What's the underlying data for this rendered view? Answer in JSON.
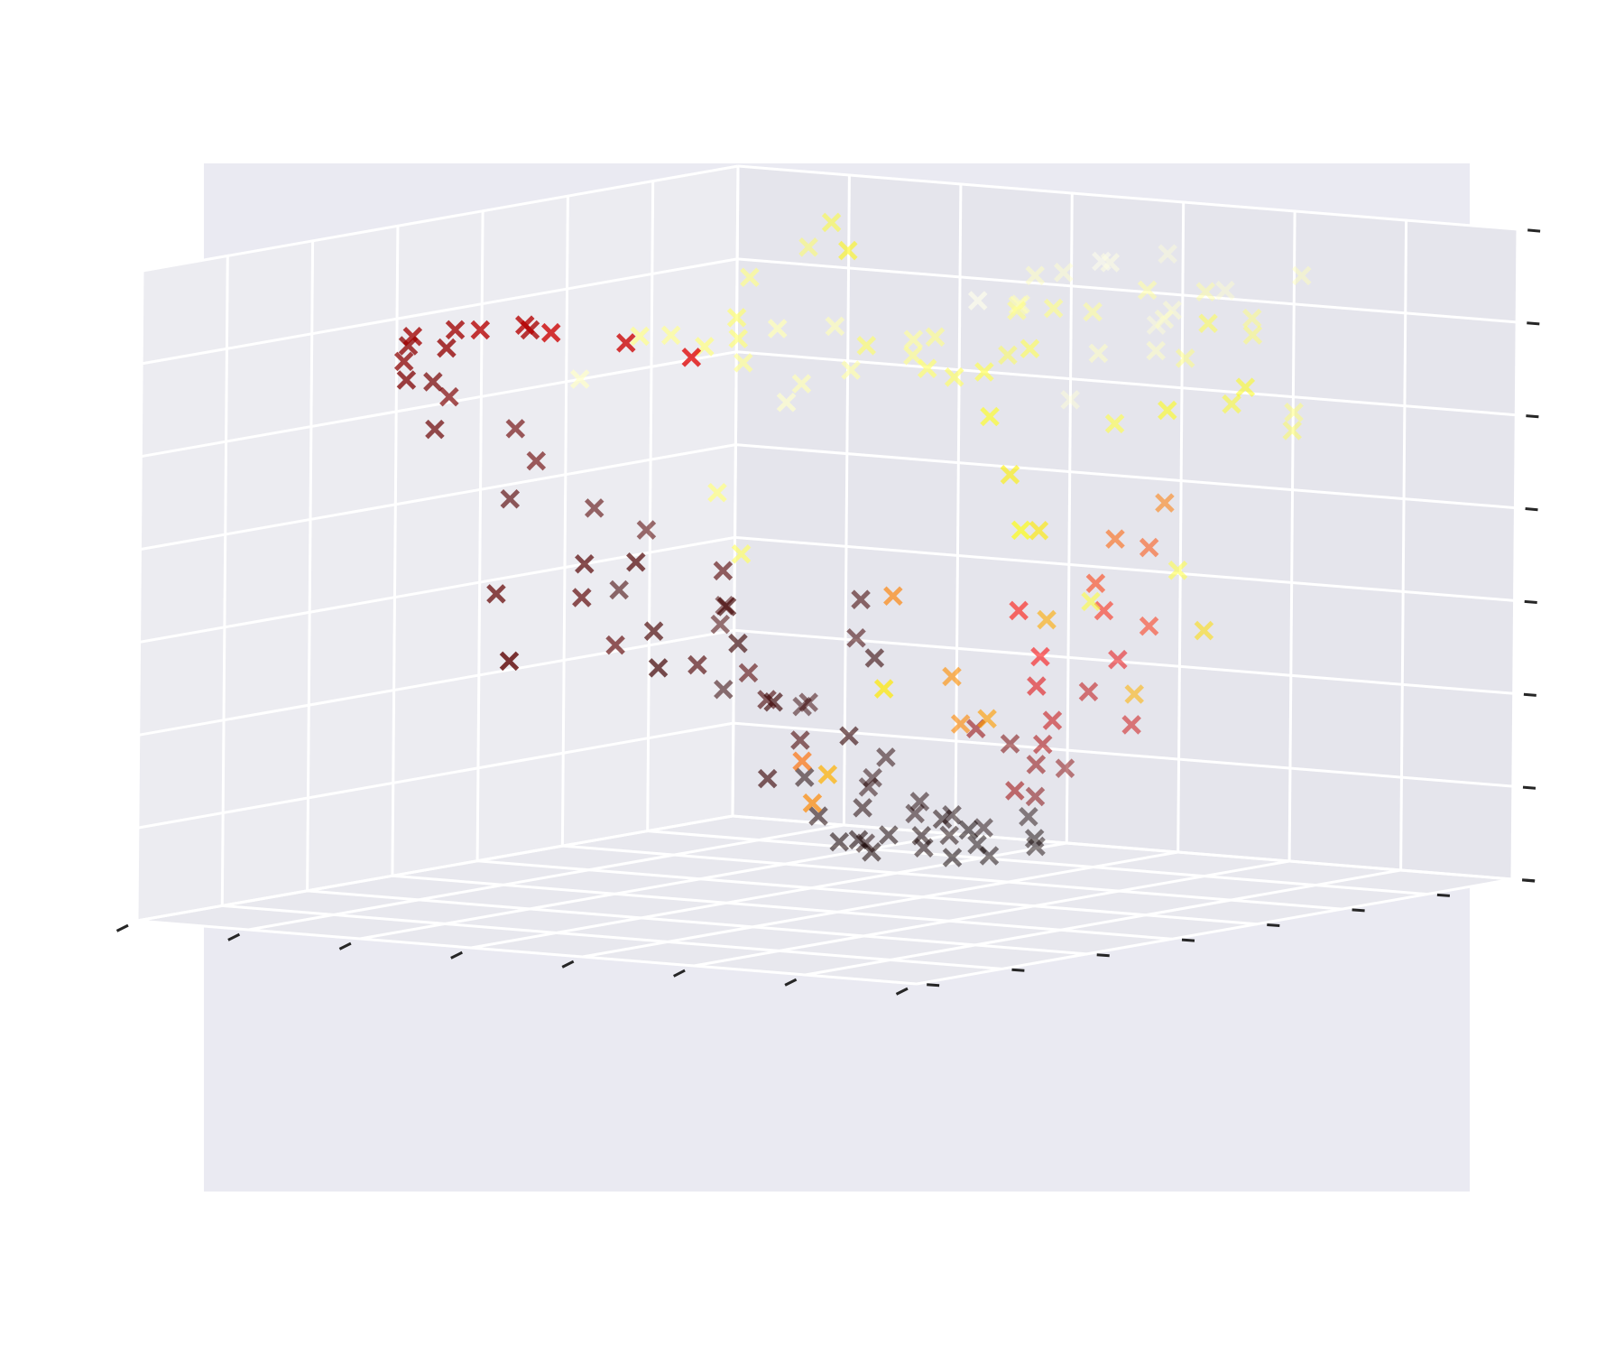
{
  "chart_data": {
    "type": "scatter",
    "projection": "3d",
    "title": "",
    "xlabel": "",
    "ylabel": "",
    "zlabel": "",
    "tick_labels_visible": false,
    "grid": true,
    "marker": "x",
    "colormap": "hot",
    "axis_range": [
      -1,
      1
    ],
    "color_range": [
      0,
      1
    ],
    "points": [
      [
        0.77,
        0.68,
        0.82,
        0.86
      ],
      [
        0.7,
        0.42,
        0.98,
        0.98
      ],
      [
        0.28,
        0.74,
        0.4,
        0.88
      ],
      [
        0.93,
        0.57,
        0.32,
        0.76
      ],
      [
        0.41,
        0.63,
        0.73,
        0.93
      ],
      [
        -0.32,
        -0.48,
        0.89,
        0.72
      ],
      [
        0.8,
        -0.51,
        0.44,
        0.83
      ],
      [
        0.21,
        -0.86,
        0.87,
        0.96
      ],
      [
        0.13,
        -0.43,
        0.62,
        0.83
      ],
      [
        0.55,
        0.44,
        0.8,
        0.89
      ],
      [
        0.66,
        -0.17,
        -0.33,
        0.62
      ],
      [
        0.36,
        0.02,
        -0.42,
        0.56
      ],
      [
        0.76,
        0.11,
        0.01,
        0.81
      ],
      [
        -0.65,
        -0.78,
        0.82,
        0.84
      ],
      [
        0.07,
        -0.72,
        0.43,
        0.96
      ],
      [
        0.62,
        0.62,
        -0.19,
        0.7
      ],
      [
        0.91,
        -0.23,
        0.79,
        0.86
      ],
      [
        0.24,
        0.19,
        0.76,
        0.85
      ],
      [
        -0.12,
        0.91,
        -0.13,
        0.13
      ],
      [
        0.57,
        -0.45,
        0.65,
        0.87
      ],
      [
        0.86,
        -0.14,
        -0.11,
        0.68
      ],
      [
        0.49,
        -0.51,
        0.78,
        0.95
      ],
      [
        0.74,
        -0.43,
        0.58,
        0.74
      ],
      [
        0.71,
        0.51,
        0.76,
        0.85
      ],
      [
        0.44,
        0.72,
        0.69,
        0.95
      ],
      [
        0.39,
        0.09,
        -0.26,
        0.57
      ],
      [
        0.14,
        0.49,
        0.82,
        0.87
      ],
      [
        0.97,
        0.31,
        0.61,
        0.82
      ],
      [
        0.39,
        0.29,
        0.02,
        0.55
      ],
      [
        0.88,
        -0.41,
        0.52,
        0.86
      ],
      [
        0.47,
        0.61,
        -0.47,
        0.62
      ],
      [
        0.99,
        0.12,
        0.13,
        0.82
      ],
      [
        0.29,
        -0.31,
        0.9,
        0.94
      ],
      [
        0.04,
        0.89,
        0.75,
        0.95
      ],
      [
        0.53,
        -0.21,
        0.7,
        0.94
      ],
      [
        0.68,
        0.35,
        0.61,
        0.78
      ],
      [
        0.13,
        0.25,
        -0.52,
        0.52
      ],
      [
        0.84,
        0.58,
        0.8,
        0.83
      ],
      [
        0.34,
        0.09,
        0.78,
        0.88
      ],
      [
        0.67,
        -0.26,
        0.53,
        0.75
      ],
      [
        0.34,
        0.49,
        -0.59,
        0.56
      ],
      [
        0.85,
        -0.24,
        0.57,
        0.78
      ],
      [
        0.67,
        0.14,
        -0.05,
        0.61
      ],
      [
        0.77,
        0.3,
        0.26,
        0.7
      ],
      [
        0.32,
        0.71,
        0.21,
        0.86
      ],
      [
        0.5,
        -0.47,
        0.76,
        0.94
      ],
      [
        0.55,
        0.18,
        -0.36,
        0.59
      ],
      [
        0.67,
        -0.22,
        0.72,
        0.94
      ],
      [
        0.72,
        -0.32,
        0.89,
        0.91
      ],
      [
        0.35,
        -0.64,
        0.7,
        0.96
      ],
      [
        0.49,
        0.36,
        0.83,
        0.9
      ],
      [
        0.55,
        0.11,
        0.38,
        0.71
      ],
      [
        0.29,
        0.8,
        0.86,
        0.88
      ],
      [
        0.91,
        -0.08,
        0.85,
        0.83
      ],
      [
        0.38,
        0.48,
        0.88,
        0.93
      ],
      [
        0.71,
        -0.49,
        0.78,
        0.87
      ],
      [
        0.62,
        0.74,
        0.81,
        0.92
      ],
      [
        -0.5,
        -0.66,
        0.93,
        0.79
      ],
      [
        0.52,
        0.04,
        0.89,
        0.93
      ],
      [
        0.85,
        0.44,
        0.85,
        0.84
      ],
      [
        0.52,
        -0.26,
        0.97,
        0.97
      ],
      [
        0.18,
        -0.55,
        0.86,
        0.95
      ],
      [
        0.45,
        -0.74,
        0.8,
        0.95
      ],
      [
        0.43,
        -0.07,
        0.86,
        0.91
      ],
      [
        0.28,
        0.9,
        0.91,
        0.9
      ],
      [
        0.69,
        0.02,
        0.88,
        0.9
      ],
      [
        0.26,
        0.63,
        0.78,
        0.9
      ],
      [
        0.76,
        -0.59,
        0.9,
        0.93
      ],
      [
        0.04,
        0.69,
        0.85,
        0.89
      ],
      [
        0.09,
        0.43,
        0.87,
        0.86
      ],
      [
        0.64,
        0.21,
        0.91,
        0.88
      ],
      [
        0.78,
        0.27,
        0.94,
        0.88
      ],
      [
        -0.03,
        0.23,
        0.95,
        0.88
      ],
      [
        0.53,
        0.87,
        0.95,
        0.93
      ],
      [
        0.46,
        -0.31,
        0.96,
        0.98
      ],
      [
        0.86,
        0.06,
        0.97,
        0.91
      ],
      [
        -0.18,
        -0.56,
        -0.91,
        0.03
      ],
      [
        -0.41,
        -0.74,
        -0.72,
        0.05
      ],
      [
        -0.64,
        -0.78,
        -0.58,
        0.08
      ],
      [
        -0.83,
        -0.73,
        -0.35,
        0.1
      ],
      [
        -0.93,
        -0.61,
        -0.05,
        0.12
      ],
      [
        -0.97,
        -0.29,
        0.21,
        0.15
      ],
      [
        -0.92,
        0.07,
        0.47,
        0.18
      ],
      [
        -0.77,
        0.42,
        0.65,
        0.2
      ],
      [
        -0.55,
        0.68,
        0.79,
        0.23
      ],
      [
        -0.27,
        0.82,
        0.86,
        0.26
      ],
      [
        -0.02,
        0.91,
        0.89,
        0.29
      ],
      [
        0.31,
        0.87,
        0.84,
        0.32
      ],
      [
        -0.25,
        -0.66,
        -0.97,
        0.03
      ],
      [
        -0.52,
        -0.84,
        -0.81,
        0.05
      ],
      [
        -0.74,
        -0.89,
        -0.62,
        0.07
      ],
      [
        -0.88,
        -0.81,
        -0.31,
        0.1
      ],
      [
        -0.98,
        -0.5,
        0.03,
        0.12
      ],
      [
        -0.94,
        -0.18,
        0.33,
        0.15
      ],
      [
        -0.84,
        0.23,
        0.55,
        0.17
      ],
      [
        -0.66,
        0.55,
        0.73,
        0.2
      ],
      [
        -0.38,
        0.76,
        0.84,
        0.23
      ],
      [
        -0.11,
        0.88,
        0.9,
        0.26
      ],
      [
        0.18,
        0.92,
        0.88,
        0.29
      ],
      [
        -0.36,
        -0.52,
        -0.94,
        0.03
      ],
      [
        -0.58,
        -0.69,
        -0.79,
        0.04
      ],
      [
        -0.79,
        -0.69,
        -0.54,
        0.07
      ],
      [
        -0.93,
        -0.52,
        -0.22,
        0.09
      ],
      [
        -0.96,
        -0.19,
        0.11,
        0.12
      ],
      [
        -0.88,
        0.17,
        0.39,
        0.15
      ],
      [
        -0.71,
        0.49,
        0.61,
        0.18
      ],
      [
        -0.44,
        0.71,
        0.77,
        0.21
      ],
      [
        -0.15,
        0.81,
        0.87,
        0.24
      ],
      [
        -0.12,
        -0.71,
        -0.99,
        0.02
      ],
      [
        -0.22,
        -0.8,
        -0.98,
        0.02
      ],
      [
        -0.31,
        -0.62,
        -0.93,
        0.03
      ],
      [
        -0.07,
        -0.52,
        -0.96,
        0.02
      ],
      [
        -0.46,
        -0.58,
        -0.88,
        0.04
      ],
      [
        -0.28,
        -0.9,
        -0.95,
        0.03
      ],
      [
        -0.18,
        -0.63,
        -0.87,
        0.03
      ],
      [
        -0.38,
        -0.8,
        -0.9,
        0.04
      ],
      [
        -0.05,
        -0.77,
        -0.94,
        0.02
      ],
      [
        -0.25,
        -0.44,
        -0.91,
        0.03
      ],
      [
        -0.43,
        -0.7,
        -0.98,
        0.04
      ],
      [
        -0.15,
        -0.88,
        -0.9,
        0.03
      ],
      [
        -0.33,
        -0.75,
        -0.85,
        0.04
      ],
      [
        -0.09,
        -0.6,
        -0.89,
        0.02
      ],
      [
        -0.5,
        -0.8,
        -0.83,
        0.05
      ],
      [
        -0.2,
        -0.68,
        -0.93,
        0.03
      ],
      [
        -0.3,
        -0.55,
        -0.97,
        0.03
      ],
      [
        -0.4,
        -0.65,
        -0.86,
        0.04
      ],
      [
        -0.1,
        -0.84,
        -0.98,
        0.02
      ],
      [
        -0.27,
        -0.78,
        -0.89,
        0.03
      ],
      [
        -0.22,
        0.01,
        -0.23,
        0.08
      ],
      [
        -0.32,
        -0.22,
        -0.45,
        0.1
      ],
      [
        -0.12,
        0.18,
        -0.08,
        0.09
      ],
      [
        -0.4,
        -0.09,
        -0.33,
        0.11
      ],
      [
        -0.04,
        -0.13,
        -0.52,
        0.07
      ],
      [
        -0.27,
        0.29,
        0.06,
        0.11
      ],
      [
        -0.49,
        -0.38,
        -0.41,
        0.12
      ],
      [
        -0.15,
        -0.31,
        -0.14,
        0.09
      ],
      [
        -0.36,
        0.11,
        -0.19,
        0.1
      ],
      [
        -0.09,
        0.06,
        -0.39,
        0.08
      ],
      [
        -0.44,
        0.24,
        0.03,
        0.12
      ],
      [
        -0.26,
        -0.44,
        -0.29,
        0.09
      ],
      [
        -0.58,
        -0.05,
        -0.28,
        0.13
      ],
      [
        -0.31,
        -0.32,
        -0.59,
        0.1
      ],
      [
        -0.18,
        0.33,
        -0.25,
        0.09
      ],
      [
        -0.53,
        0.13,
        -0.1,
        0.13
      ],
      [
        -0.06,
        -0.24,
        -0.3,
        0.07
      ],
      [
        -0.42,
        -0.2,
        -0.06,
        0.12
      ],
      [
        -0.21,
        -0.08,
        -0.66,
        0.08
      ],
      [
        -0.62,
        0.3,
        -0.07,
        0.14
      ],
      [
        0.12,
        -0.55,
        -0.66,
        0.2
      ],
      [
        0.26,
        -0.42,
        -0.49,
        0.28
      ],
      [
        0.05,
        -0.64,
        -0.78,
        0.18
      ],
      [
        0.31,
        -0.3,
        -0.36,
        0.32
      ],
      [
        0.19,
        -0.48,
        -0.58,
        0.24
      ],
      [
        0.38,
        -0.22,
        -0.25,
        0.36
      ],
      [
        0.08,
        -0.7,
        -0.7,
        0.19
      ],
      [
        0.42,
        -0.38,
        -0.13,
        0.4
      ],
      [
        0.23,
        -0.58,
        -0.43,
        0.27
      ],
      [
        0.49,
        -0.26,
        -0.02,
        0.44
      ],
      [
        0.15,
        -0.44,
        -0.72,
        0.22
      ],
      [
        0.35,
        -0.52,
        -0.31,
        0.33
      ],
      [
        0.55,
        -0.36,
        0.08,
        0.47
      ],
      [
        0.03,
        -0.58,
        -0.61,
        0.17
      ],
      [
        0.28,
        -0.66,
        -0.54,
        0.29
      ],
      [
        0.46,
        -0.48,
        -0.19,
        0.42
      ],
      [
        0.6,
        -0.18,
        0.14,
        0.5
      ],
      [
        0.11,
        -0.36,
        -0.52,
        0.21
      ],
      [
        0.65,
        -0.28,
        0.24,
        0.54
      ],
      [
        0.4,
        -0.12,
        -0.09,
        0.38
      ]
    ]
  }
}
